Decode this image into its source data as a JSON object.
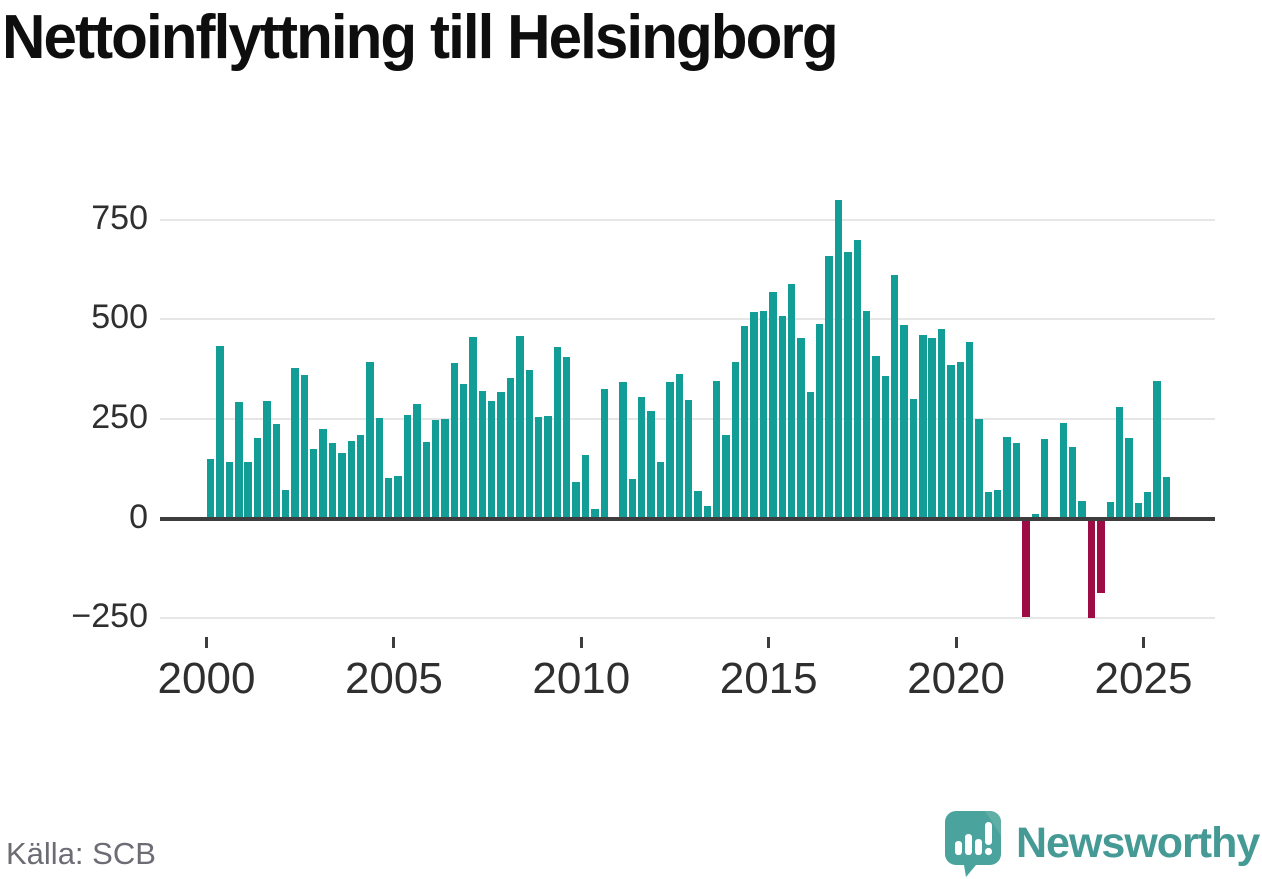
{
  "title": "Nettoinflyttning till Helsingborg",
  "source": "Källa: SCB",
  "logo": {
    "name": "Newsworthy",
    "icon": "newsworthy-speech-bubble-chart-icon"
  },
  "colors": {
    "positive_bar": "#129e96",
    "negative_bar": "#9e0c45",
    "gridline": "#e6e6e6",
    "zero_line": "#3d3d3d",
    "axis_text": "#2f2f2f",
    "title_text": "#0e0e0e",
    "source_text": "#6c6c74",
    "logo_teal": "#4aa39c"
  },
  "chart_data": {
    "type": "bar",
    "title": "Nettoinflyttning till Helsingborg",
    "xlabel": "",
    "ylabel": "",
    "x_unit": "quarter",
    "start_year": 2000,
    "start_quarter": 1,
    "end_year": 2025,
    "end_quarter": 3,
    "grid": "horizontal",
    "legend": "none",
    "ylim": [
      -290,
      830
    ],
    "y_ticks": [
      750,
      500,
      250,
      0,
      -250
    ],
    "y_tick_labels": [
      "750",
      "500",
      "250",
      "0",
      "−250"
    ],
    "x_ticks": [
      2000,
      2005,
      2010,
      2015,
      2020,
      2025
    ],
    "x_tick_labels": [
      "2000",
      "2005",
      "2010",
      "2015",
      "2020",
      "2025"
    ],
    "values": [
      150,
      433,
      141,
      293,
      141,
      203,
      296,
      237,
      71,
      379,
      360,
      175,
      225,
      190,
      166,
      196,
      210,
      393,
      253,
      103,
      108,
      259,
      288,
      193,
      248,
      250,
      390,
      338,
      455,
      321,
      294,
      317,
      354,
      457,
      372,
      255,
      257,
      430,
      405,
      92,
      160,
      24,
      325,
      5,
      342,
      99,
      305,
      269,
      141,
      343,
      363,
      298,
      70,
      33,
      345,
      210,
      394,
      483,
      518,
      520,
      569,
      508,
      588,
      452,
      317,
      489,
      658,
      799,
      670,
      698,
      522,
      407,
      358,
      610,
      487,
      300,
      460,
      454,
      475,
      386,
      393,
      442,
      250,
      67,
      71,
      206,
      189,
      -246,
      12,
      201,
      5,
      239,
      179,
      45,
      -248,
      -187,
      43,
      280,
      202,
      39,
      67,
      346,
      104
    ]
  }
}
